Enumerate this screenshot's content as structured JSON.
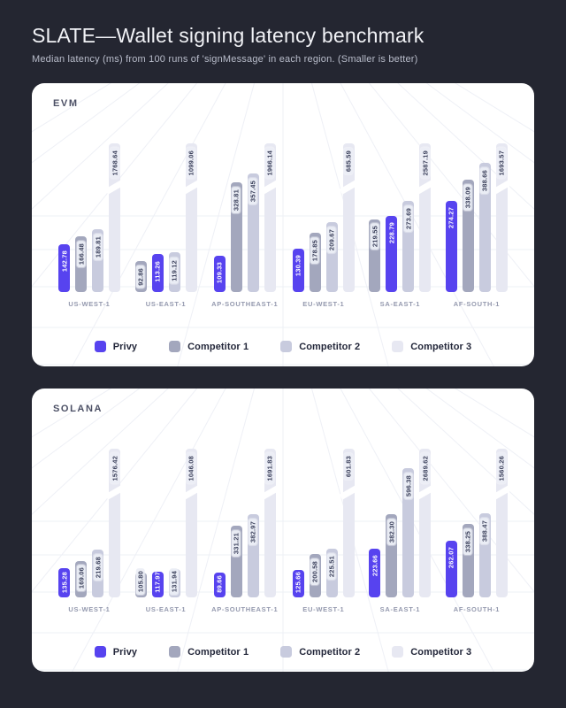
{
  "page": {
    "title": "SLATE—Wallet signing latency benchmark",
    "subtitle": "Median latency (ms) from 100 runs of 'signMessage' in each region. (Smaller is better)"
  },
  "colors": {
    "privy": "#5743ef",
    "competitor1": "#a3a7bd",
    "competitor2": "#c8cbde",
    "competitor3": "#e7e8f2",
    "page_bg": "#242631",
    "card_bg": "#ffffff",
    "grid_line": "#eef0f6"
  },
  "legend": [
    "Privy",
    "Competitor 1",
    "Competitor 2",
    "Competitor 3"
  ],
  "chart_data": [
    {
      "type": "bar",
      "title": "EVM",
      "unit": "ms",
      "categories": [
        "US-WEST-1",
        "US-EAST-1",
        "AP-SOUTHEAST-1",
        "EU-WEST-1",
        "SA-EAST-1",
        "AF-SOUTH-1"
      ],
      "series": [
        {
          "name": "Privy",
          "color_key": "privy",
          "values": [
            142.78,
            113.26,
            109.33,
            130.39,
            228.79,
            274.27
          ]
        },
        {
          "name": "Competitor 1",
          "color_key": "competitor1",
          "values": [
            166.48,
            92.86,
            328.81,
            178.85,
            219.55,
            338.09
          ]
        },
        {
          "name": "Competitor 2",
          "color_key": "competitor2",
          "values": [
            189.81,
            119.12,
            357.45,
            209.67,
            273.69,
            388.66
          ]
        },
        {
          "name": "Competitor 3",
          "color_key": "competitor3",
          "values": [
            1768.64,
            1099.06,
            1966.14,
            685.59,
            2587.19,
            1693.57
          ],
          "truncated": true
        }
      ],
      "layout": {
        "sort": "ascending-within-group",
        "value_labels": "rotated-at-bar-top",
        "legend_position": "bottom",
        "grid": "perspective-floor"
      }
    },
    {
      "type": "bar",
      "title": "SOLANA",
      "unit": "ms",
      "categories": [
        "US-WEST-1",
        "US-EAST-1",
        "AP-SOUTHEAST-1",
        "EU-WEST-1",
        "SA-EAST-1",
        "AF-SOUTH-1"
      ],
      "series": [
        {
          "name": "Privy",
          "color_key": "privy",
          "values": [
            135.28,
            117.97,
            89.66,
            125.66,
            223.66,
            262.07
          ]
        },
        {
          "name": "Competitor 1",
          "color_key": "competitor1",
          "values": [
            169.06,
            105.8,
            331.21,
            200.58,
            382.3,
            338.25
          ]
        },
        {
          "name": "Competitor 2",
          "color_key": "competitor2",
          "values": [
            219.68,
            131.94,
            382.97,
            225.51,
            596.38,
            388.47
          ]
        },
        {
          "name": "Competitor 3",
          "color_key": "competitor3",
          "values": [
            1576.42,
            1046.08,
            1691.83,
            601.83,
            2689.62,
            1560.26
          ],
          "truncated": true
        }
      ],
      "layout": {
        "sort": "ascending-within-group",
        "value_labels": "rotated-at-bar-top",
        "legend_position": "bottom",
        "grid": "perspective-floor"
      }
    }
  ]
}
